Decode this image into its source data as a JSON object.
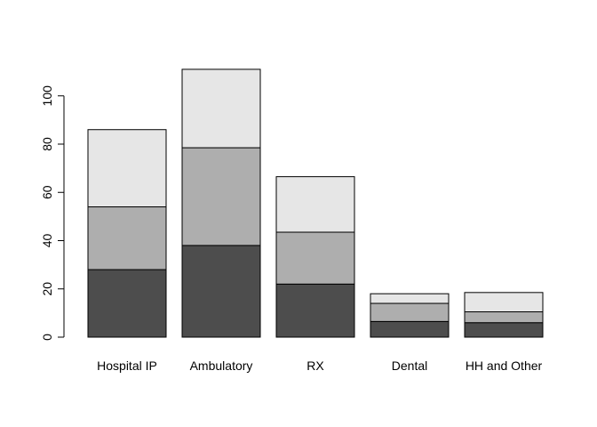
{
  "chart_data": {
    "type": "bar",
    "stacked": true,
    "categories": [
      "Hospital IP",
      "Ambulatory",
      "RX",
      "Dental",
      "HH and Other"
    ],
    "series": [
      {
        "values": [
          28,
          38,
          22,
          6.5,
          6
        ],
        "color": "#4d4d4d"
      },
      {
        "values": [
          26,
          40.5,
          21.5,
          7.5,
          4.5
        ],
        "color": "#aeaeae"
      },
      {
        "values": [
          32,
          32.5,
          23,
          4,
          8
        ],
        "color": "#e6e6e6"
      }
    ],
    "yticks": [
      0,
      20,
      40,
      60,
      80,
      100
    ],
    "ylim": [
      0,
      115
    ],
    "title": "",
    "xlabel": "",
    "ylabel": "",
    "grid": false,
    "legend": "none"
  }
}
